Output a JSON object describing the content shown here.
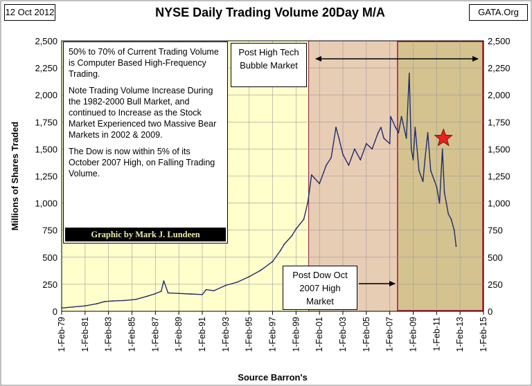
{
  "header": {
    "date": "12 Oct 2012",
    "title": "NYSE Daily Trading Volume 20Day  M/A",
    "source_tag": "GATA.Org"
  },
  "notes": {
    "p1": "50% to 70% of Current Trading Volume is Computer Based High-Frequency Trading.",
    "p2": "Note Trading Volume Increase During the 1982-2000 Bull Market, and continued to Increase as the Stock Market Experienced two Massive Bear Markets in 2002 & 2009.",
    "p3": "The Dow is now within 5% of its October 2007 High, on Falling Trading Volume.",
    "credit": "Graphic by Mark J. Lundeen"
  },
  "annotations": {
    "post_tech": "Post High Tech  Bubble Market",
    "post_dow": "Post Dow Oct 2007 High Market"
  },
  "colors": {
    "plot_bg": "#ffffcc",
    "region_post_tech": "#e8cdb5",
    "region_post_dow": "#d4c38f",
    "region_border": "#8b1a3a",
    "line": "#1f2a6e",
    "star": "#e8221e"
  },
  "chart_data": {
    "type": "line",
    "title": "NYSE Daily Trading Volume 20Day  M/A",
    "ylabel": "Millions of Shares Traded",
    "xlabel": "Source Barron's",
    "ylim": [
      0,
      2500
    ],
    "yticks": [
      0,
      250,
      500,
      750,
      1000,
      1250,
      1500,
      1750,
      2000,
      2250,
      2500
    ],
    "ytick_labels": [
      "0",
      "250",
      "500",
      "750",
      "1,000",
      "1,250",
      "1,500",
      "1,750",
      "2,000",
      "2,250",
      "2,500"
    ],
    "xtick_labels": [
      "1-Feb-79",
      "1-Feb-81",
      "1-Feb-83",
      "1-Feb-85",
      "1-Feb-87",
      "1-Feb-89",
      "1-Feb-91",
      "1-Feb-93",
      "1-Feb-95",
      "1-Feb-97",
      "1-Feb-99",
      "1-Feb-01",
      "1-Feb-03",
      "1-Feb-05",
      "1-Feb-07",
      "1-Feb-09",
      "1-Feb-11",
      "1-Feb-13",
      "1-Feb-15"
    ],
    "x_range": [
      "1979-02-01",
      "2015-02-01"
    ],
    "shaded_regions": [
      {
        "from": "2000-03-01",
        "to": "2015-02-01"
      },
      {
        "from": "2007-10-01",
        "to": "2015-02-01"
      }
    ],
    "star_marker": {
      "x": "2011-09-01",
      "y": 1600
    },
    "grid": {
      "x": true,
      "y": true
    },
    "x": [
      "1979-02-01",
      "1980-02-01",
      "1981-02-01",
      "1982-02-01",
      "1982-10-01",
      "1983-06-01",
      "1984-06-01",
      "1985-06-01",
      "1986-06-01",
      "1987-01-01",
      "1987-08-01",
      "1987-10-20",
      "1988-03-01",
      "1989-02-01",
      "1990-02-01",
      "1991-02-01",
      "1991-06-01",
      "1992-02-01",
      "1993-02-01",
      "1994-02-01",
      "1995-02-01",
      "1996-02-01",
      "1997-02-01",
      "1997-10-01",
      "1998-02-01",
      "1998-10-01",
      "1999-02-01",
      "1999-10-01",
      "2000-02-01",
      "2000-06-01",
      "2001-02-01",
      "2001-09-01",
      "2002-02-01",
      "2002-07-01",
      "2002-10-01",
      "2003-02-01",
      "2003-08-01",
      "2004-02-01",
      "2004-08-01",
      "2005-02-01",
      "2005-08-01",
      "2006-02-01",
      "2006-05-01",
      "2006-08-01",
      "2007-02-01",
      "2007-03-01",
      "2007-08-01",
      "2007-11-01",
      "2008-02-01",
      "2008-07-01",
      "2008-10-01",
      "2008-12-01",
      "2009-02-01",
      "2009-04-01",
      "2009-08-01",
      "2009-12-01",
      "2010-02-01",
      "2010-05-01",
      "2010-08-01",
      "2010-12-01",
      "2011-02-01",
      "2011-05-01",
      "2011-08-01",
      "2011-10-01",
      "2011-12-01",
      "2012-02-01",
      "2012-05-01",
      "2012-08-01",
      "2012-10-01"
    ],
    "values": [
      30,
      40,
      50,
      70,
      90,
      95,
      100,
      110,
      140,
      160,
      185,
      280,
      170,
      165,
      160,
      155,
      200,
      190,
      240,
      270,
      320,
      380,
      460,
      560,
      620,
      700,
      760,
      850,
      1000,
      1260,
      1180,
      1350,
      1420,
      1700,
      1600,
      1450,
      1350,
      1500,
      1400,
      1550,
      1500,
      1650,
      1700,
      1600,
      1550,
      1800,
      1700,
      1650,
      1800,
      1600,
      2200,
      1500,
      1400,
      1700,
      1300,
      1200,
      1400,
      1650,
      1300,
      1200,
      1150,
      1000,
      1500,
      1100,
      1000,
      900,
      850,
      750,
      600
    ]
  }
}
